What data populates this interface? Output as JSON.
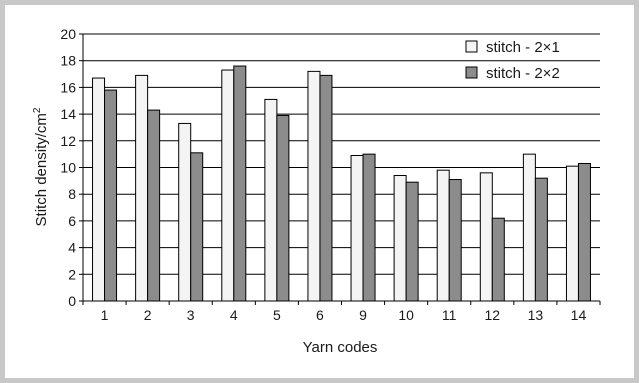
{
  "chart_data": {
    "type": "bar",
    "categories": [
      "1",
      "2",
      "3",
      "4",
      "5",
      "6",
      "9",
      "10",
      "11",
      "12",
      "13",
      "14"
    ],
    "series": [
      {
        "name": "stitch - 2×1",
        "values": [
          16.7,
          16.9,
          13.3,
          17.3,
          15.1,
          17.2,
          10.9,
          9.4,
          9.8,
          9.6,
          11.0,
          10.1
        ]
      },
      {
        "name": "stitch - 2×2",
        "values": [
          15.8,
          14.3,
          11.1,
          17.6,
          13.9,
          16.9,
          11.0,
          8.9,
          9.1,
          6.2,
          9.2,
          10.3
        ]
      }
    ],
    "xlabel": "Yarn codes",
    "ylabel": "Stitch density/cm",
    "ylabel_superscript": "2",
    "ylim": [
      0,
      20
    ],
    "yticks": [
      "0",
      "2",
      "4",
      "6",
      "8",
      "10",
      "12",
      "14",
      "16",
      "18",
      "20"
    ],
    "grid": "horizontal",
    "legend_position": "top-right",
    "colors": {
      "series1": "#f4f4f4",
      "series2": "#8c8c8c",
      "frame": "#c8c8c8"
    }
  }
}
